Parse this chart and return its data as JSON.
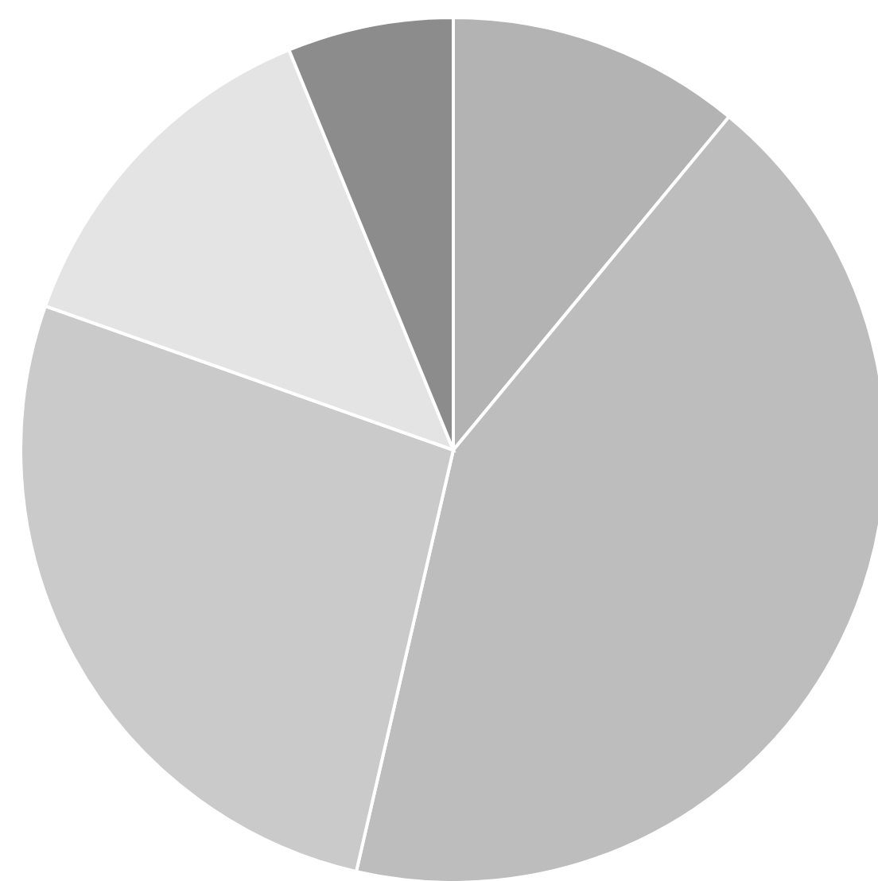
{
  "chart_data": {
    "type": "pie",
    "categories": [
      null,
      null,
      null,
      null,
      null
    ],
    "values": [
      11,
      42.6,
      26.8,
      13.4,
      6.2
    ],
    "colors": [
      "#b3b3b3",
      "#bdbdbd",
      "#cacaca",
      "#e4e4e4",
      "#8c8c8c"
    ]
  }
}
